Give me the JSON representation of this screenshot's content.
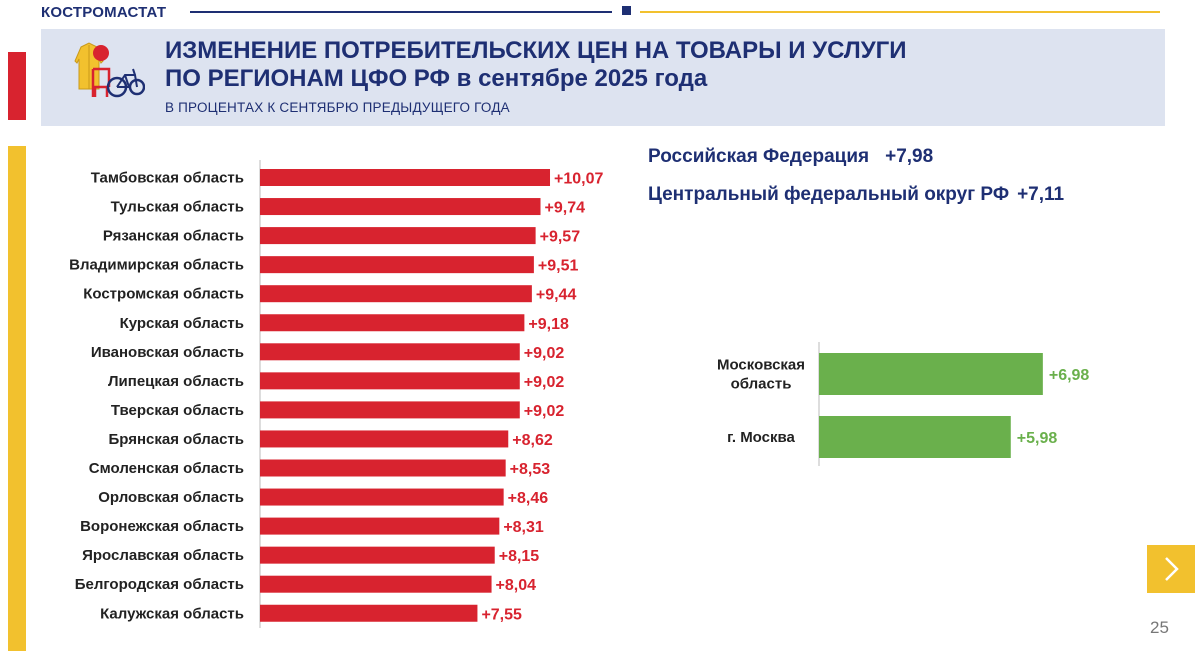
{
  "brand": "КОСТРОМАСТАТ",
  "header": {
    "title_line1": "ИЗМЕНЕНИЕ ПОТРЕБИТЕЛЬСКИХ ЦЕН НА ТОВАРЫ И УСЛУГИ",
    "title_line2": "ПО РЕГИОНАМ ЦФО РФ в сентябре 2025 года",
    "subtitle": "В ПРОЦЕНТАХ К СЕНТЯБРЮ ПРЕДЫДУЩЕГО ГОДА",
    "logo_icon": "consumer-goods-icon"
  },
  "summary": {
    "rf_label": "Российская Федерация",
    "rf_value": "+7,98",
    "cfo_label": "Центральный федеральный округ РФ",
    "cfo_value": "+7,11"
  },
  "colors": {
    "navy": "#1e2f73",
    "bar_red": "#d8232f",
    "bar_green": "#6ab04c",
    "gold": "#f2c12e",
    "header_bg": "#dde3f0"
  },
  "chart_data": [
    {
      "type": "bar",
      "orientation": "horizontal",
      "categories": [
        "Тамбовская область",
        "Тульская область",
        "Рязанская область",
        "Владимирская область",
        "Костромская область",
        "Курская область",
        "Ивановская область",
        "Липецкая область",
        "Тверская область",
        "Брянская область",
        "Смоленская область",
        "Орловская область",
        "Воронежская область",
        "Ярославская область",
        "Белгородская область",
        "Калужская область"
      ],
      "values": [
        10.07,
        9.74,
        9.57,
        9.51,
        9.44,
        9.18,
        9.02,
        9.02,
        9.02,
        8.62,
        8.53,
        8.46,
        8.31,
        8.15,
        8.04,
        7.55
      ],
      "labels": [
        "+10,07",
        "+9,74",
        "+9,57",
        "+9,51",
        "+9,44",
        "+9,18",
        "+9,02",
        "+9,02",
        "+9,02",
        "+8,62",
        "+8,53",
        "+8,46",
        "+8,31",
        "+8,15",
        "+8,04",
        "+7,55"
      ],
      "color": "#d8232f"
    },
    {
      "type": "bar",
      "orientation": "horizontal",
      "categories": [
        [
          "Московская",
          "область"
        ],
        [
          "г. Москва"
        ]
      ],
      "values": [
        6.98,
        5.98
      ],
      "labels": [
        "+6,98",
        "+5,98"
      ],
      "color": "#6ab04c"
    }
  ],
  "nav": {
    "next_icon": "chevron-right-icon"
  },
  "page_number": "25"
}
